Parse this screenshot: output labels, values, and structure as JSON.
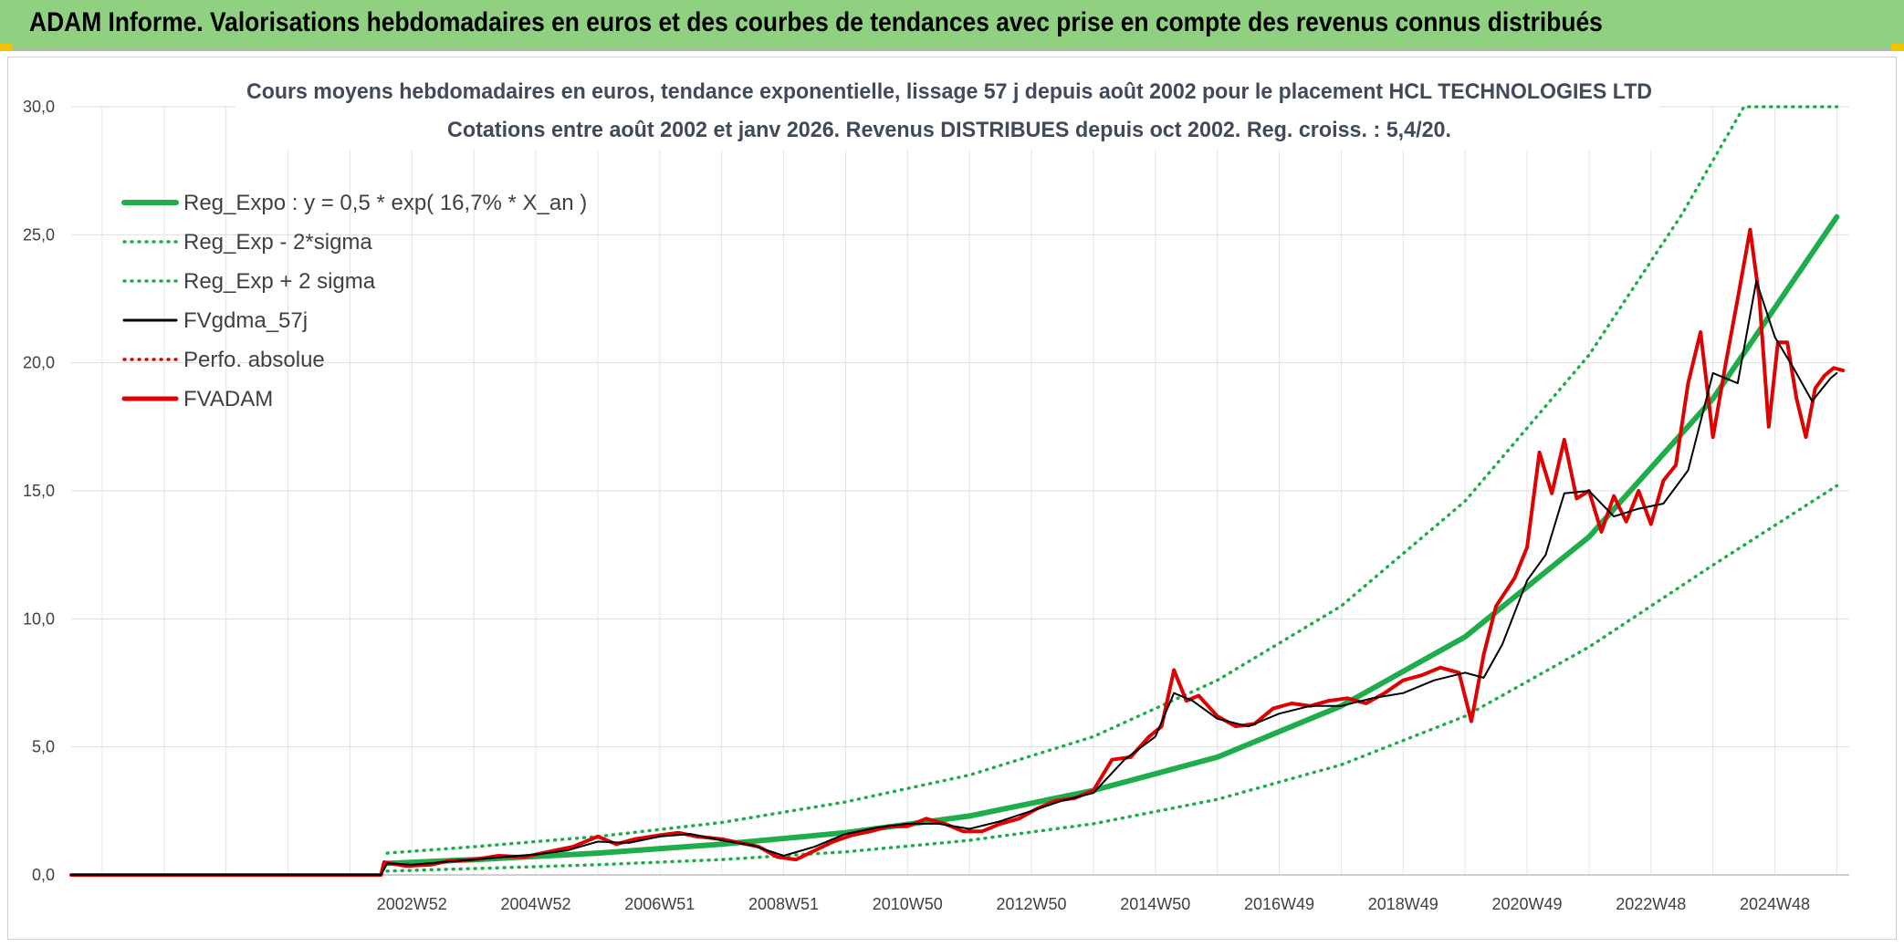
{
  "banner": {
    "title": "ADAM Informe. Valorisations hebdomadaires en euros et des courbes de tendances avec prise en compte des revenus connus distribués"
  },
  "chart_data": {
    "type": "line",
    "title": "Cours moyens hebdomadaires en euros, tendance exponentielle, lissage 57 j depuis août 2002 pour le placement HCL TECHNOLOGIES LTD",
    "subtitle": "Cotations entre août 2002 et janv 2026. Revenus DISTRIBUES depuis oct 2002. Reg. croiss. : 5,4/20.",
    "xlabel": "",
    "ylabel": "",
    "ylim": [
      0,
      30
    ],
    "xlim": [
      1997.5,
      2026.2
    ],
    "yticks": [
      "0,0",
      "5,0",
      "10,0",
      "15,0",
      "20,0",
      "25,0",
      "30,0"
    ],
    "xticks": [
      {
        "label": "2002W52",
        "x": 2003.0
      },
      {
        "label": "2004W52",
        "x": 2005.0
      },
      {
        "label": "2006W51",
        "x": 2007.0
      },
      {
        "label": "2008W51",
        "x": 2009.0
      },
      {
        "label": "2010W50",
        "x": 2011.0
      },
      {
        "label": "2012W50",
        "x": 2013.0
      },
      {
        "label": "2014W50",
        "x": 2015.0
      },
      {
        "label": "2016W49",
        "x": 2017.0
      },
      {
        "label": "2018W49",
        "x": 2019.0
      },
      {
        "label": "2020W49",
        "x": 2021.0
      },
      {
        "label": "2022W48",
        "x": 2023.0
      },
      {
        "label": "2024W48",
        "x": 2025.0
      }
    ],
    "grid": true,
    "legend_position": "top-left",
    "series": [
      {
        "name": "Reg_Expo : y = 0,5 * exp( 16,7% *  X_an )",
        "color": "#1fad4b",
        "style": "solid-thick",
        "x": [
          2002.6,
          2004,
          2006,
          2008,
          2010,
          2012,
          2014,
          2016,
          2018,
          2020,
          2022,
          2024,
          2026
        ],
        "values": [
          0.45,
          0.6,
          0.85,
          1.2,
          1.65,
          2.3,
          3.3,
          4.6,
          6.6,
          9.3,
          13.2,
          18.6,
          25.7
        ]
      },
      {
        "name": "Reg_Exp - 2*sigma",
        "color": "#1fad4b",
        "style": "dotted",
        "x": [
          2002.6,
          2004,
          2006,
          2008,
          2010,
          2012,
          2014,
          2016,
          2018,
          2020,
          2022,
          2024,
          2026
        ],
        "values": [
          0.15,
          0.25,
          0.4,
          0.6,
          0.9,
          1.35,
          2.0,
          2.95,
          4.3,
          6.2,
          8.9,
          12.1,
          15.2
        ]
      },
      {
        "name": "Reg_Exp + 2 sigma",
        "color": "#1fad4b",
        "style": "dotted",
        "x": [
          2002.6,
          2004,
          2006,
          2008,
          2010,
          2012,
          2014,
          2016,
          2018,
          2020,
          2022,
          2023.5,
          2024.5,
          2026
        ],
        "values": [
          0.85,
          1.1,
          1.5,
          2.05,
          2.85,
          3.9,
          5.4,
          7.6,
          10.5,
          14.6,
          20.3,
          25.8,
          30.0,
          30.0
        ]
      },
      {
        "name": "FVgdma_57j",
        "color": "#000000",
        "style": "solid-thin",
        "x": [
          1997.5,
          2002.5,
          2002.6,
          2003.0,
          2003.5,
          2004.0,
          2004.5,
          2005.0,
          2005.5,
          2006.0,
          2006.5,
          2007.0,
          2007.5,
          2008.0,
          2008.5,
          2009.0,
          2009.5,
          2010.0,
          2010.5,
          2011.0,
          2011.5,
          2012.0,
          2012.5,
          2013.0,
          2013.5,
          2014.0,
          2014.5,
          2015.0,
          2015.3,
          2015.6,
          2016.0,
          2016.5,
          2017.0,
          2017.5,
          2018.0,
          2018.5,
          2019.0,
          2019.5,
          2020.0,
          2020.3,
          2020.6,
          2021.0,
          2021.3,
          2021.6,
          2022.0,
          2022.4,
          2022.8,
          2023.2,
          2023.6,
          2024.0,
          2024.4,
          2024.7,
          2025.0,
          2025.3,
          2025.6,
          2025.9,
          2026.0
        ],
        "values": [
          0.0,
          0.0,
          0.45,
          0.4,
          0.5,
          0.6,
          0.7,
          0.8,
          0.95,
          1.3,
          1.25,
          1.5,
          1.6,
          1.35,
          1.15,
          0.75,
          1.1,
          1.6,
          1.85,
          2.0,
          2.0,
          1.8,
          2.1,
          2.5,
          2.9,
          3.2,
          4.5,
          5.4,
          7.1,
          6.8,
          6.1,
          5.8,
          6.3,
          6.6,
          6.6,
          6.9,
          7.1,
          7.6,
          7.9,
          7.7,
          9.0,
          11.5,
          12.5,
          14.9,
          15.0,
          14.0,
          14.3,
          14.5,
          15.8,
          19.6,
          19.2,
          23.2,
          21.0,
          19.8,
          18.5,
          19.4,
          19.6
        ]
      },
      {
        "name": "Perfo. absolue",
        "color": "#e00000",
        "style": "dotted",
        "x": [],
        "values": []
      },
      {
        "name": "FVADAM",
        "color": "#e00000",
        "style": "solid-thick",
        "x": [
          1997.5,
          2002.5,
          2002.55,
          2002.9,
          2003.3,
          2003.6,
          2004.0,
          2004.4,
          2004.8,
          2005.2,
          2005.6,
          2006.0,
          2006.3,
          2006.6,
          2007.0,
          2007.3,
          2007.6,
          2008.0,
          2008.3,
          2008.6,
          2008.9,
          2009.2,
          2009.5,
          2009.8,
          2010.1,
          2010.4,
          2010.7,
          2011.0,
          2011.3,
          2011.6,
          2011.9,
          2012.2,
          2012.5,
          2012.8,
          2013.1,
          2013.4,
          2013.7,
          2014.0,
          2014.3,
          2014.6,
          2014.9,
          2015.1,
          2015.3,
          2015.5,
          2015.7,
          2016.0,
          2016.3,
          2016.6,
          2016.9,
          2017.2,
          2017.5,
          2017.8,
          2018.1,
          2018.4,
          2018.7,
          2019.0,
          2019.3,
          2019.6,
          2019.9,
          2020.1,
          2020.3,
          2020.5,
          2020.8,
          2021.0,
          2021.2,
          2021.4,
          2021.6,
          2021.8,
          2022.0,
          2022.2,
          2022.4,
          2022.6,
          2022.8,
          2023.0,
          2023.2,
          2023.4,
          2023.6,
          2023.8,
          2024.0,
          2024.2,
          2024.4,
          2024.6,
          2024.75,
          2024.9,
          2025.05,
          2025.2,
          2025.35,
          2025.5,
          2025.65,
          2025.8,
          2025.95,
          2026.1
        ],
        "values": [
          0.0,
          0.0,
          0.5,
          0.35,
          0.4,
          0.55,
          0.6,
          0.75,
          0.7,
          0.9,
          1.1,
          1.5,
          1.2,
          1.4,
          1.55,
          1.65,
          1.5,
          1.4,
          1.25,
          1.1,
          0.7,
          0.6,
          0.95,
          1.3,
          1.55,
          1.7,
          1.9,
          1.9,
          2.2,
          2.0,
          1.7,
          1.7,
          2.0,
          2.2,
          2.6,
          2.9,
          3.0,
          3.3,
          4.5,
          4.6,
          5.4,
          5.8,
          8.0,
          6.8,
          7.0,
          6.2,
          5.8,
          5.9,
          6.5,
          6.7,
          6.6,
          6.8,
          6.9,
          6.7,
          7.1,
          7.6,
          7.8,
          8.1,
          7.9,
          6.0,
          8.6,
          10.5,
          11.6,
          12.8,
          16.5,
          14.9,
          17.0,
          14.7,
          15.0,
          13.4,
          14.8,
          13.8,
          15.0,
          13.7,
          15.4,
          16.0,
          19.2,
          21.2,
          17.1,
          19.9,
          22.5,
          25.2,
          22.5,
          17.5,
          20.8,
          20.8,
          18.6,
          17.1,
          19.0,
          19.5,
          19.8,
          19.7
        ]
      }
    ]
  }
}
